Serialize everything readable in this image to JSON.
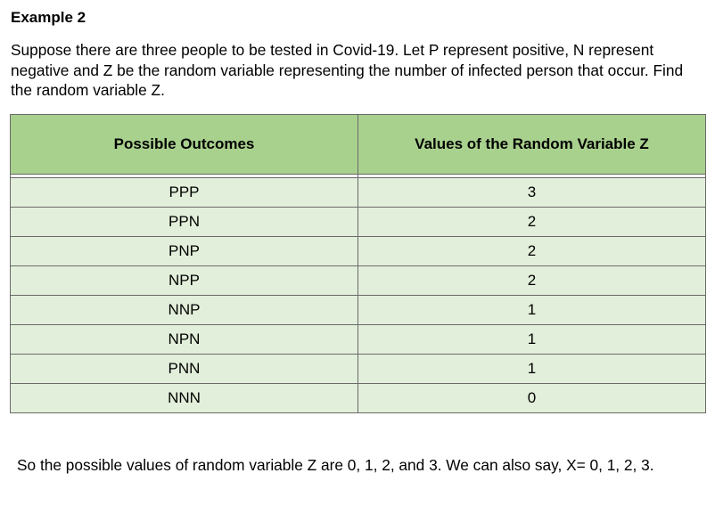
{
  "heading": "Example 2",
  "intro": "Suppose there are three people to be tested in Covid-19. Let P represent positive, N represent negative and Z be the random variable representing the number of infected person that occur. Find the random variable Z.",
  "table": {
    "headers": [
      "Possible Outcomes",
      "Values of the Random Variable Z"
    ],
    "rows": [
      {
        "outcome": "PPP",
        "value": "3"
      },
      {
        "outcome": "PPN",
        "value": "2"
      },
      {
        "outcome": "PNP",
        "value": "2"
      },
      {
        "outcome": "NPP",
        "value": "2"
      },
      {
        "outcome": "NNP",
        "value": "1"
      },
      {
        "outcome": "NPN",
        "value": "1"
      },
      {
        "outcome": "PNN",
        "value": "1"
      },
      {
        "outcome": "NNN",
        "value": "0"
      }
    ]
  },
  "conclusion": "So the possible values of random variable Z are 0, 1, 2, and 3. We can also say, X= 0, 1, 2, 3.",
  "colors": {
    "header_fill": "#a9d18e",
    "row_fill": "#e2efda",
    "border": "#6a6a6a"
  }
}
